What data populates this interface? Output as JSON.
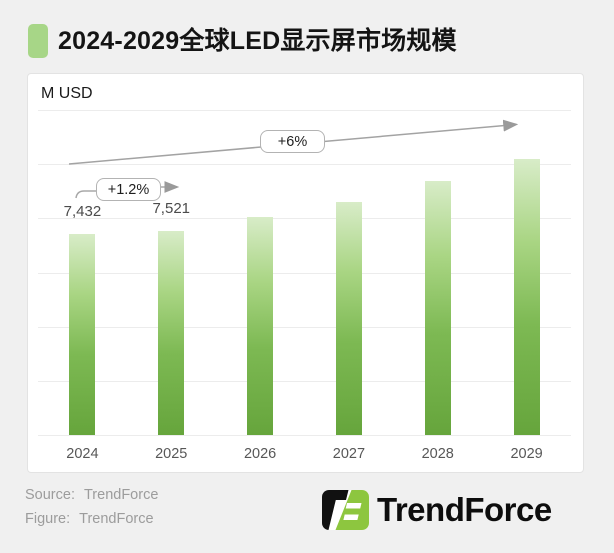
{
  "page": {
    "background": "#f0f0f0"
  },
  "header": {
    "title": "2024-2029全球LED显示屏市场规模",
    "bullet_color": "#a7d687"
  },
  "chart_data": {
    "type": "bar",
    "title": "2024-2029全球LED显示屏市场规模",
    "unit_label": "M USD",
    "categories": [
      "2024",
      "2025",
      "2026",
      "2027",
      "2028",
      "2029"
    ],
    "values": [
      7432,
      7521,
      8050,
      8600,
      9380,
      10190
    ],
    "bar_labels": [
      "7,432",
      "7,521",
      "",
      "",
      "",
      ""
    ],
    "values_note": "only 2024 and 2025 bars are labeled; later values estimated from bar heights",
    "ylim": [
      0,
      12000
    ],
    "gridline_step": 2000,
    "grid": true,
    "legend": "none",
    "bar_color_top": "#d8ecc8",
    "bar_color_bottom": "#66a53c",
    "annotations": [
      {
        "label": "+1.2%"
      },
      {
        "label": "+6%"
      }
    ]
  },
  "footer": {
    "source_label": "Source:",
    "source_value": "TrendForce",
    "figure_label": "Figure:",
    "figure_value": "TrendForce"
  },
  "logo": {
    "text": "TrendForce",
    "icon": "trendforce-tf-icon",
    "green": "#8dc63f",
    "black": "#111111"
  }
}
